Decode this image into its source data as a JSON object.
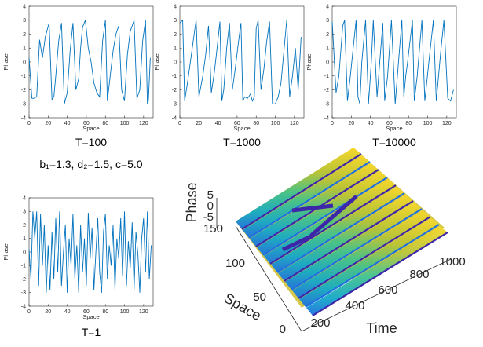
{
  "figure": {
    "param_label": "b₁=1.3, d₂=1.5, c=5.0"
  },
  "chart_data": [
    {
      "type": "line",
      "id": "p100",
      "caption": "T=100",
      "xlabel": "Space",
      "ylabel": "Phase",
      "xlim": [
        0,
        130
      ],
      "ylim": [
        -4,
        4
      ],
      "xticks": [
        0,
        20,
        40,
        60,
        80,
        100,
        120
      ],
      "yticks": [
        -4,
        -3,
        -2,
        -1,
        0,
        1,
        2,
        3,
        4
      ],
      "color": "#0072BD",
      "x": [
        0,
        3,
        5,
        8,
        11,
        14,
        17,
        21,
        24,
        26,
        28,
        31,
        34,
        37,
        40,
        43,
        46,
        49,
        52,
        54,
        56,
        59,
        62,
        65,
        68,
        71,
        74,
        77,
        80,
        82,
        85,
        88,
        91,
        94,
        97,
        100,
        103,
        106,
        110,
        113,
        116,
        119,
        122,
        124,
        125,
        127
      ],
      "y": [
        0.3,
        -2.6,
        -2.6,
        -2.5,
        1.6,
        0.3,
        1.8,
        2.8,
        -2.7,
        -2.5,
        -1.0,
        1.5,
        2.8,
        -3.0,
        -2.2,
        0.8,
        2.8,
        -2.0,
        -1.2,
        1.0,
        2.5,
        3.0,
        1.0,
        0.0,
        -1.5,
        -2.2,
        -2.5,
        1.5,
        3.0,
        -2.8,
        -1.0,
        0.8,
        2.0,
        2.6,
        -2.0,
        -2.8,
        0.5,
        2.2,
        3.0,
        -2.6,
        -2.0,
        1.5,
        3.0,
        -3.0,
        -2.8,
        0.3
      ]
    },
    {
      "type": "line",
      "id": "p1000",
      "caption": "T=1000",
      "xlabel": "Space",
      "ylabel": "Phase",
      "xlim": [
        0,
        130
      ],
      "ylim": [
        -4,
        4
      ],
      "xticks": [
        0,
        20,
        40,
        60,
        80,
        100,
        120
      ],
      "yticks": [
        -4,
        -3,
        -2,
        -1,
        0,
        1,
        2,
        3,
        4
      ],
      "color": "#0072BD",
      "x": [
        0,
        3,
        5,
        8,
        12,
        15,
        17,
        20,
        24,
        27,
        30,
        33,
        36,
        39,
        42,
        44,
        46,
        49,
        52,
        55,
        58,
        61,
        64,
        66,
        68,
        71,
        74,
        76,
        78,
        80,
        82,
        85,
        88,
        91,
        94,
        97,
        100,
        103,
        106,
        109,
        112,
        115,
        118,
        121,
        124,
        127
      ],
      "y": [
        2.8,
        3.0,
        -2.8,
        -1.5,
        0.5,
        2.0,
        3.0,
        -2.5,
        -1.0,
        0.5,
        2.6,
        -2.2,
        -0.8,
        1.0,
        2.9,
        -2.8,
        -2.0,
        1.0,
        2.8,
        -2.0,
        -0.5,
        1.2,
        2.8,
        -2.8,
        -2.5,
        -2.6,
        -2.3,
        -2.8,
        -2.5,
        2.4,
        3.0,
        -2.0,
        -0.5,
        1.5,
        2.9,
        -3.0,
        -3.0,
        -2.5,
        -1.5,
        0.8,
        3.0,
        -2.5,
        -1.0,
        1.0,
        -2.0,
        1.8
      ]
    },
    {
      "type": "line",
      "id": "p10000",
      "caption": "T=10000",
      "xlabel": "Space",
      "ylabel": "Phase",
      "xlim": [
        0,
        130
      ],
      "ylim": [
        -4,
        4
      ],
      "xticks": [
        0,
        20,
        40,
        60,
        80,
        100,
        120
      ],
      "yticks": [
        -4,
        -3,
        -2,
        -1,
        0,
        1,
        2,
        3,
        4
      ],
      "color": "#0072BD",
      "x": [
        0,
        4,
        7,
        11,
        13,
        16,
        19,
        22,
        25,
        27,
        29,
        31,
        35,
        38,
        41,
        43,
        47,
        50,
        53,
        55,
        58,
        62,
        66,
        70,
        73,
        75,
        77,
        79,
        84,
        86,
        89,
        94,
        97,
        102,
        106,
        109,
        114,
        117,
        121,
        124,
        127
      ],
      "y": [
        2.9,
        -2.2,
        -1.0,
        2.6,
        3.0,
        -2.8,
        -1.0,
        1.0,
        3.0,
        -2.5,
        -3.0,
        0.0,
        3.0,
        -3.0,
        0.0,
        3.0,
        -2.5,
        0.2,
        2.8,
        -2.8,
        -1.0,
        3.0,
        -3.0,
        0.5,
        3.0,
        -2.5,
        -1.0,
        0.0,
        3.0,
        -2.8,
        -1.0,
        3.0,
        -2.8,
        0.5,
        3.0,
        -2.8,
        1.0,
        3.0,
        -2.6,
        -2.8,
        -2.0
      ]
    },
    {
      "type": "line",
      "id": "p1",
      "caption": "T=1",
      "xlabel": "Space",
      "ylabel": "Phase",
      "xlim": [
        0,
        130
      ],
      "ylim": [
        -4,
        4
      ],
      "xticks": [
        0,
        20,
        40,
        60,
        80,
        100,
        120
      ],
      "yticks": [
        -4,
        -3,
        -2,
        -1,
        0,
        1,
        2,
        3,
        4
      ],
      "color": "#0072BD",
      "x": [
        0,
        2,
        4,
        6,
        8,
        10,
        12,
        14,
        16,
        18,
        20,
        22,
        24,
        26,
        28,
        30,
        32,
        34,
        36,
        38,
        40,
        42,
        44,
        46,
        48,
        50,
        52,
        54,
        56,
        58,
        60,
        62,
        64,
        66,
        68,
        70,
        72,
        74,
        76,
        78,
        80,
        82,
        84,
        86,
        88,
        90,
        92,
        94,
        96,
        98,
        100,
        102,
        104,
        106,
        108,
        110,
        112,
        114,
        116,
        118,
        120,
        122,
        124,
        126,
        128
      ],
      "y": [
        0.2,
        -2.0,
        3.0,
        1.0,
        3.0,
        -2.5,
        2.8,
        -1.0,
        2.0,
        -3.0,
        0.5,
        -2.8,
        1.5,
        -2.0,
        2.5,
        -1.5,
        3.0,
        -2.5,
        0.0,
        2.0,
        -3.0,
        1.0,
        -1.0,
        2.8,
        -2.0,
        0.5,
        -3.0,
        2.0,
        -1.5,
        1.0,
        -2.5,
        2.9,
        -0.5,
        1.8,
        -2.8,
        0.0,
        2.5,
        -1.5,
        -3.0,
        1.5,
        2.8,
        -2.0,
        0.5,
        -1.0,
        2.0,
        -2.8,
        1.0,
        -0.5,
        2.5,
        -1.8,
        3.0,
        -2.5,
        0.8,
        -1.2,
        2.2,
        -2.8,
        1.5,
        -0.2,
        -3.0,
        1.0,
        2.5,
        -1.5,
        3.0,
        -2.0,
        0.5
      ]
    },
    {
      "type": "surface",
      "id": "surf3d",
      "xlabel": "Time",
      "ylabel": "Space",
      "zlabel": "Phase",
      "xticks": [
        200,
        400,
        600,
        800,
        1000
      ],
      "yticks": [
        0,
        50,
        100,
        150
      ],
      "zticks": [
        -5,
        0,
        5
      ],
      "colormap": [
        "#3d26a8",
        "#1e6fe0",
        "#14a9c7",
        "#43c28a",
        "#b8c335",
        "#f9d82a"
      ]
    }
  ]
}
